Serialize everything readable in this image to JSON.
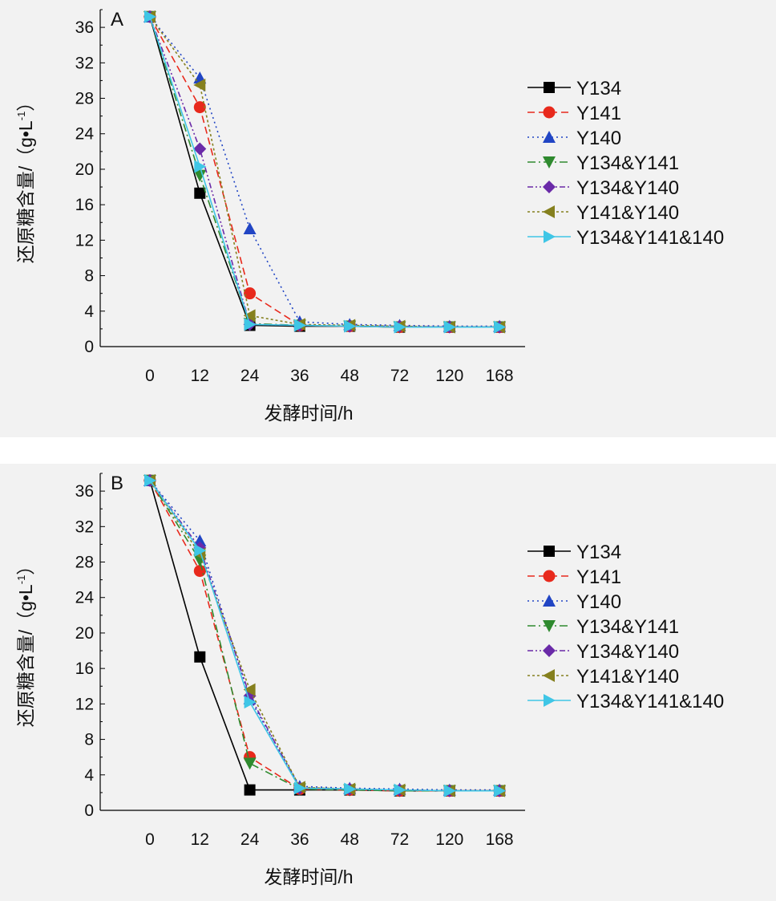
{
  "styles": {
    "Y134": {
      "color": "#000000",
      "dash": "",
      "marker": "square"
    },
    "Y141": {
      "color": "#e8291c",
      "dash": "9,5",
      "marker": "circle"
    },
    "Y140": {
      "color": "#2145c4",
      "dash": "2,4",
      "marker": "triangle-up"
    },
    "Y134&Y141": {
      "color": "#2f8a2f",
      "dash": "10,4,2,4",
      "marker": "triangle-down"
    },
    "Y134&Y140": {
      "color": "#6a2aa8",
      "dash": "7,3,2,3,2,3",
      "marker": "diamond"
    },
    "Y141&Y140": {
      "color": "#85801e",
      "dash": "3,3",
      "marker": "triangle-left"
    },
    "Y134&Y141&140": {
      "color": "#3fc6e6",
      "dash": "",
      "marker": "triangle-right"
    }
  },
  "chart_data": [
    {
      "type": "line",
      "panel_label": "A",
      "xlabel": "发酵时间/h",
      "ylabel": "还原糖含量/（g•L",
      "ylabel_sup": "-1",
      "ylabel_close": "）",
      "categories": [
        "0",
        "12",
        "24",
        "36",
        "48",
        "72",
        "120",
        "168"
      ],
      "ylim": [
        0,
        38
      ],
      "yticks": [
        0,
        4,
        8,
        12,
        16,
        20,
        24,
        28,
        32,
        36
      ],
      "series": [
        {
          "name": "Y134",
          "values": [
            37.2,
            17.3,
            2.4,
            2.3,
            2.3,
            2.2,
            2.2,
            2.2
          ]
        },
        {
          "name": "Y141",
          "values": [
            37.2,
            27.0,
            6.0,
            2.4,
            2.3,
            2.2,
            2.2,
            2.2
          ]
        },
        {
          "name": "Y140",
          "values": [
            37.2,
            30.3,
            13.3,
            2.8,
            2.5,
            2.4,
            2.3,
            2.3
          ]
        },
        {
          "name": "Y134&Y141",
          "values": [
            37.2,
            19.3,
            2.6,
            2.4,
            2.3,
            2.2,
            2.2,
            2.2
          ]
        },
        {
          "name": "Y134&Y140",
          "values": [
            37.2,
            22.3,
            2.5,
            2.4,
            2.3,
            2.3,
            2.2,
            2.2
          ]
        },
        {
          "name": "Y141&Y140",
          "values": [
            37.2,
            29.5,
            3.5,
            2.5,
            2.4,
            2.3,
            2.2,
            2.2
          ]
        },
        {
          "name": "Y134&Y141&140",
          "values": [
            37.2,
            20.3,
            2.5,
            2.4,
            2.3,
            2.2,
            2.2,
            2.2
          ]
        }
      ]
    },
    {
      "type": "line",
      "panel_label": "B",
      "xlabel": "发酵时间/h",
      "ylabel": "还原糖含量/（g•L",
      "ylabel_sup": "-1",
      "ylabel_close": "）",
      "categories": [
        "0",
        "12",
        "24",
        "36",
        "48",
        "72",
        "120",
        "168"
      ],
      "ylim": [
        0,
        38
      ],
      "yticks": [
        0,
        4,
        8,
        12,
        16,
        20,
        24,
        28,
        32,
        36
      ],
      "series": [
        {
          "name": "Y134",
          "values": [
            37.2,
            17.3,
            2.3,
            2.3,
            2.3,
            2.2,
            2.2,
            2.2
          ]
        },
        {
          "name": "Y141",
          "values": [
            37.2,
            27.0,
            6.0,
            2.4,
            2.3,
            2.2,
            2.2,
            2.2
          ]
        },
        {
          "name": "Y140",
          "values": [
            37.2,
            30.4,
            12.6,
            2.7,
            2.5,
            2.4,
            2.3,
            2.3
          ]
        },
        {
          "name": "Y134&Y141",
          "values": [
            37.2,
            28.2,
            5.3,
            2.4,
            2.3,
            2.2,
            2.2,
            2.2
          ]
        },
        {
          "name": "Y134&Y140",
          "values": [
            37.2,
            29.6,
            12.9,
            2.5,
            2.4,
            2.3,
            2.2,
            2.2
          ]
        },
        {
          "name": "Y141&Y140",
          "values": [
            37.2,
            28.9,
            13.6,
            2.6,
            2.4,
            2.3,
            2.2,
            2.2
          ]
        },
        {
          "name": "Y134&Y141&140",
          "values": [
            37.2,
            29.3,
            12.2,
            2.5,
            2.4,
            2.3,
            2.2,
            2.2
          ]
        }
      ]
    }
  ]
}
